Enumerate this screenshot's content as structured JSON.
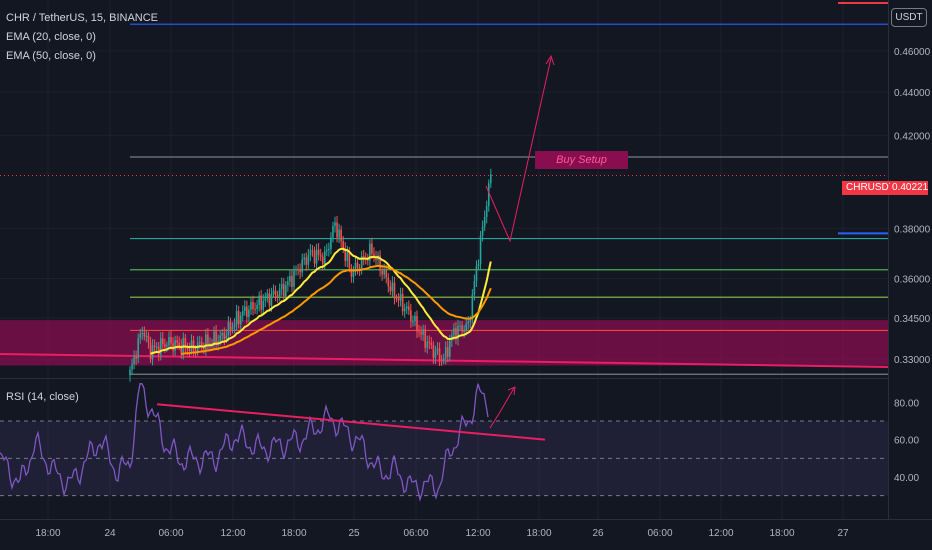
{
  "legend": {
    "symbol": "CHR / TetherUS, 15, BINANCE",
    "ema20": "EMA (20, close, 0)",
    "ema50": "EMA (50, close, 0)",
    "rsi": "RSI (14, close)"
  },
  "unit": "USDT",
  "price_tag": {
    "symbol": "CHRUSDT",
    "value": "0.40221"
  },
  "annotation": "Buy Setup",
  "colors": {
    "background": "#131722",
    "up": "#26a69a",
    "down": "#ef5350",
    "ema20": "#ffeb3b",
    "ema50": "#ff9800",
    "zone": "#880e4f",
    "rsi": "#7e57c2",
    "arrow": "#e91e63",
    "target_line": "#2962ff"
  },
  "chart_data": [
    {
      "type": "candlestick",
      "x_ticks": [
        "18:00",
        "24",
        "06:00",
        "12:00",
        "18:00",
        "25",
        "06:00",
        "12:00",
        "18:00",
        "26",
        "06:00",
        "12:00",
        "18:00",
        "27"
      ],
      "y_ticks": [
        "0.46000",
        "0.44000",
        "0.42000",
        "0.38000",
        "0.36000",
        "0.34500",
        "0.33000"
      ],
      "ylim": [
        0.3234,
        0.4859
      ],
      "y_scale": "log",
      "horizontal_levels": [
        0.4734,
        0.4103,
        0.3758,
        0.3634,
        0.3528,
        0.3404,
        0.3247
      ],
      "support_zone": [
        0.3278,
        0.3442
      ],
      "ema_periods": [
        20,
        50
      ],
      "last_price": 0.40221,
      "annotation": "Buy Setup"
    },
    {
      "type": "line",
      "name": "RSI (14, close)",
      "y_ticks": [
        "80.00",
        "60.00",
        "40.00"
      ],
      "ylim": [
        18,
        92
      ],
      "bands": [
        70,
        50,
        30
      ],
      "divergence_line": [
        79,
        60
      ]
    }
  ]
}
